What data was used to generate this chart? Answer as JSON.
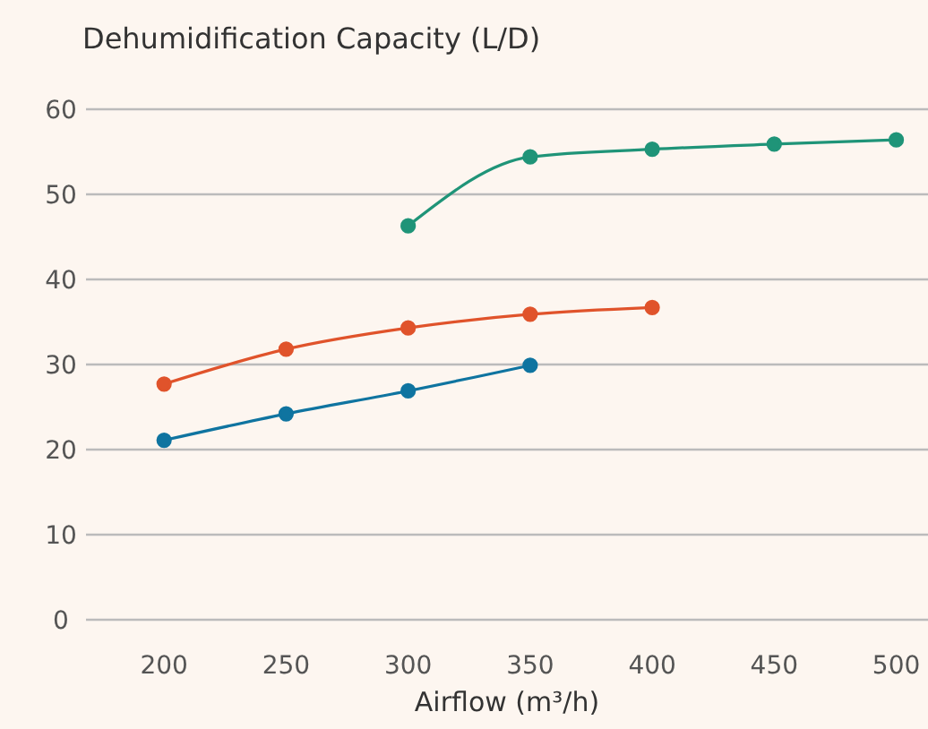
{
  "chart_data": {
    "type": "line",
    "title": "Dehumidification Capacity (L/D)",
    "xlabel": "Airflow (m³/h)",
    "series": [
      {
        "color": "#1f9478",
        "x": [
          300,
          350,
          400,
          450,
          500
        ],
        "values": [
          46.3,
          54.4,
          55.3,
          55.9,
          56.4
        ]
      },
      {
        "color": "#e0532b",
        "x": [
          200,
          250,
          300,
          350,
          400
        ],
        "values": [
          27.7,
          31.8,
          34.3,
          35.9,
          36.7
        ]
      },
      {
        "color": "#0f74a0",
        "x": [
          200,
          250,
          300,
          350
        ],
        "values": [
          21.1,
          24.2,
          26.9,
          29.9
        ]
      }
    ],
    "xlim": [
      168,
      513
    ],
    "xticks": [
      200,
      250,
      300,
      350,
      400,
      450,
      500
    ],
    "ylim": [
      0,
      60
    ],
    "yticks": [
      0,
      10,
      20,
      30,
      40,
      50,
      60
    ],
    "grid": "y",
    "marker": "circle",
    "line_style": "solid"
  }
}
